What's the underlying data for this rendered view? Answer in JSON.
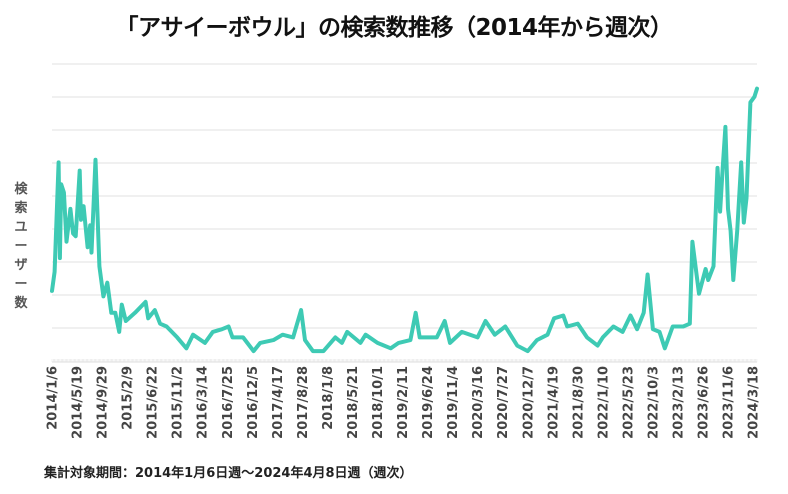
{
  "chart_data": {
    "type": "line",
    "title": "「アサイーボウル」の検索数推移（2014年から週次）",
    "ylabel": "検索ユーザー数",
    "xlabel": "",
    "footnote": "集計対象期間：2014年1月6日週〜2024年4月8日週（週次）",
    "x_start": "2014-01-06",
    "x_end": "2024-04-08",
    "ylim": [
      0,
      109
    ],
    "grid": true,
    "y_tick_labels_shown": false,
    "line_color": "#3ecab4",
    "x_tick_labels": [
      "2014/1/6",
      "2014/5/19",
      "2014/9/29",
      "2015/2/9",
      "2015/6/22",
      "2015/11/2",
      "2016/3/14",
      "2016/7/25",
      "2016/12/5",
      "2017/4/17",
      "2017/8/28",
      "2018/1/8",
      "2018/5/21",
      "2018/10/1",
      "2019/2/11",
      "2019/6/24",
      "2019/11/4",
      "2020/3/16",
      "2020/7/27",
      "2020/12/7",
      "2021/4/19",
      "2021/8/30",
      "2022/1/10",
      "2022/5/23",
      "2022/10/3",
      "2023/2/13",
      "2023/6/26",
      "2023/11/6",
      "2024/3/18"
    ],
    "x": [
      "2014-01-06",
      "2014-01-20",
      "2014-02-10",
      "2014-02-17",
      "2014-02-24",
      "2014-03-10",
      "2014-03-24",
      "2014-04-14",
      "2014-04-28",
      "2014-05-12",
      "2014-06-02",
      "2014-06-09",
      "2014-06-23",
      "2014-07-14",
      "2014-07-28",
      "2014-08-04",
      "2014-08-25",
      "2014-09-15",
      "2014-10-06",
      "2014-10-27",
      "2014-11-17",
      "2014-12-08",
      "2014-12-29",
      "2015-01-12",
      "2015-02-02",
      "2015-03-23",
      "2015-05-18",
      "2015-06-01",
      "2015-07-06",
      "2015-08-03",
      "2015-09-07",
      "2015-11-02",
      "2015-12-21",
      "2016-01-25",
      "2016-03-28",
      "2016-05-09",
      "2016-06-27",
      "2016-08-01",
      "2016-08-22",
      "2016-10-17",
      "2016-12-12",
      "2017-01-16",
      "2017-03-27",
      "2017-05-15",
      "2017-07-10",
      "2017-08-21",
      "2017-09-11",
      "2017-10-23",
      "2017-12-18",
      "2018-02-19",
      "2018-03-26",
      "2018-04-23",
      "2018-07-02",
      "2018-07-30",
      "2018-10-01",
      "2018-12-10",
      "2019-01-21",
      "2019-03-25",
      "2019-04-22",
      "2019-05-13",
      "2019-08-12",
      "2019-09-23",
      "2019-10-21",
      "2019-12-23",
      "2020-03-16",
      "2020-04-27",
      "2020-06-15",
      "2020-08-10",
      "2020-10-12",
      "2020-12-07",
      "2021-01-25",
      "2021-03-22",
      "2021-04-26",
      "2021-06-14",
      "2021-07-05",
      "2021-08-30",
      "2021-10-18",
      "2021-12-13",
      "2022-01-10",
      "2022-03-07",
      "2022-04-25",
      "2022-06-06",
      "2022-07-11",
      "2022-08-15",
      "2022-09-05",
      "2022-10-03",
      "2022-11-07",
      "2022-12-05",
      "2023-01-16",
      "2023-03-13",
      "2023-04-17",
      "2023-05-01",
      "2023-06-05",
      "2023-07-10",
      "2023-07-24",
      "2023-08-21",
      "2023-09-11",
      "2023-09-25",
      "2023-10-09",
      "2023-10-23",
      "2023-11-06",
      "2023-11-20",
      "2023-12-04",
      "2023-12-25",
      "2024-01-15",
      "2024-01-29",
      "2024-02-12",
      "2024-03-04",
      "2024-03-25",
      "2024-04-08"
    ],
    "values": [
      26,
      33,
      73,
      38,
      65,
      62,
      44,
      56,
      47,
      46,
      70,
      52,
      57,
      42,
      50,
      40,
      74,
      35,
      24,
      29,
      18,
      18,
      11,
      21,
      15,
      18,
      22,
      16,
      19,
      14,
      13,
      9,
      5,
      10,
      7,
      11,
      12,
      13,
      9,
      9,
      4,
      7,
      8,
      10,
      9,
      19,
      8,
      4,
      4,
      9,
      7,
      11,
      7,
      10,
      7,
      5,
      7,
      8,
      18,
      9,
      9,
      15,
      7,
      11,
      9,
      15,
      10,
      13,
      6,
      4,
      8,
      10,
      16,
      17,
      13,
      14,
      9,
      6,
      9,
      13,
      11,
      17,
      12,
      18,
      32,
      12,
      11,
      5,
      13,
      13,
      14,
      44,
      25,
      34,
      30,
      35,
      71,
      55,
      71,
      86,
      56,
      48,
      30,
      48,
      73,
      51,
      60,
      95,
      97,
      100
    ]
  }
}
